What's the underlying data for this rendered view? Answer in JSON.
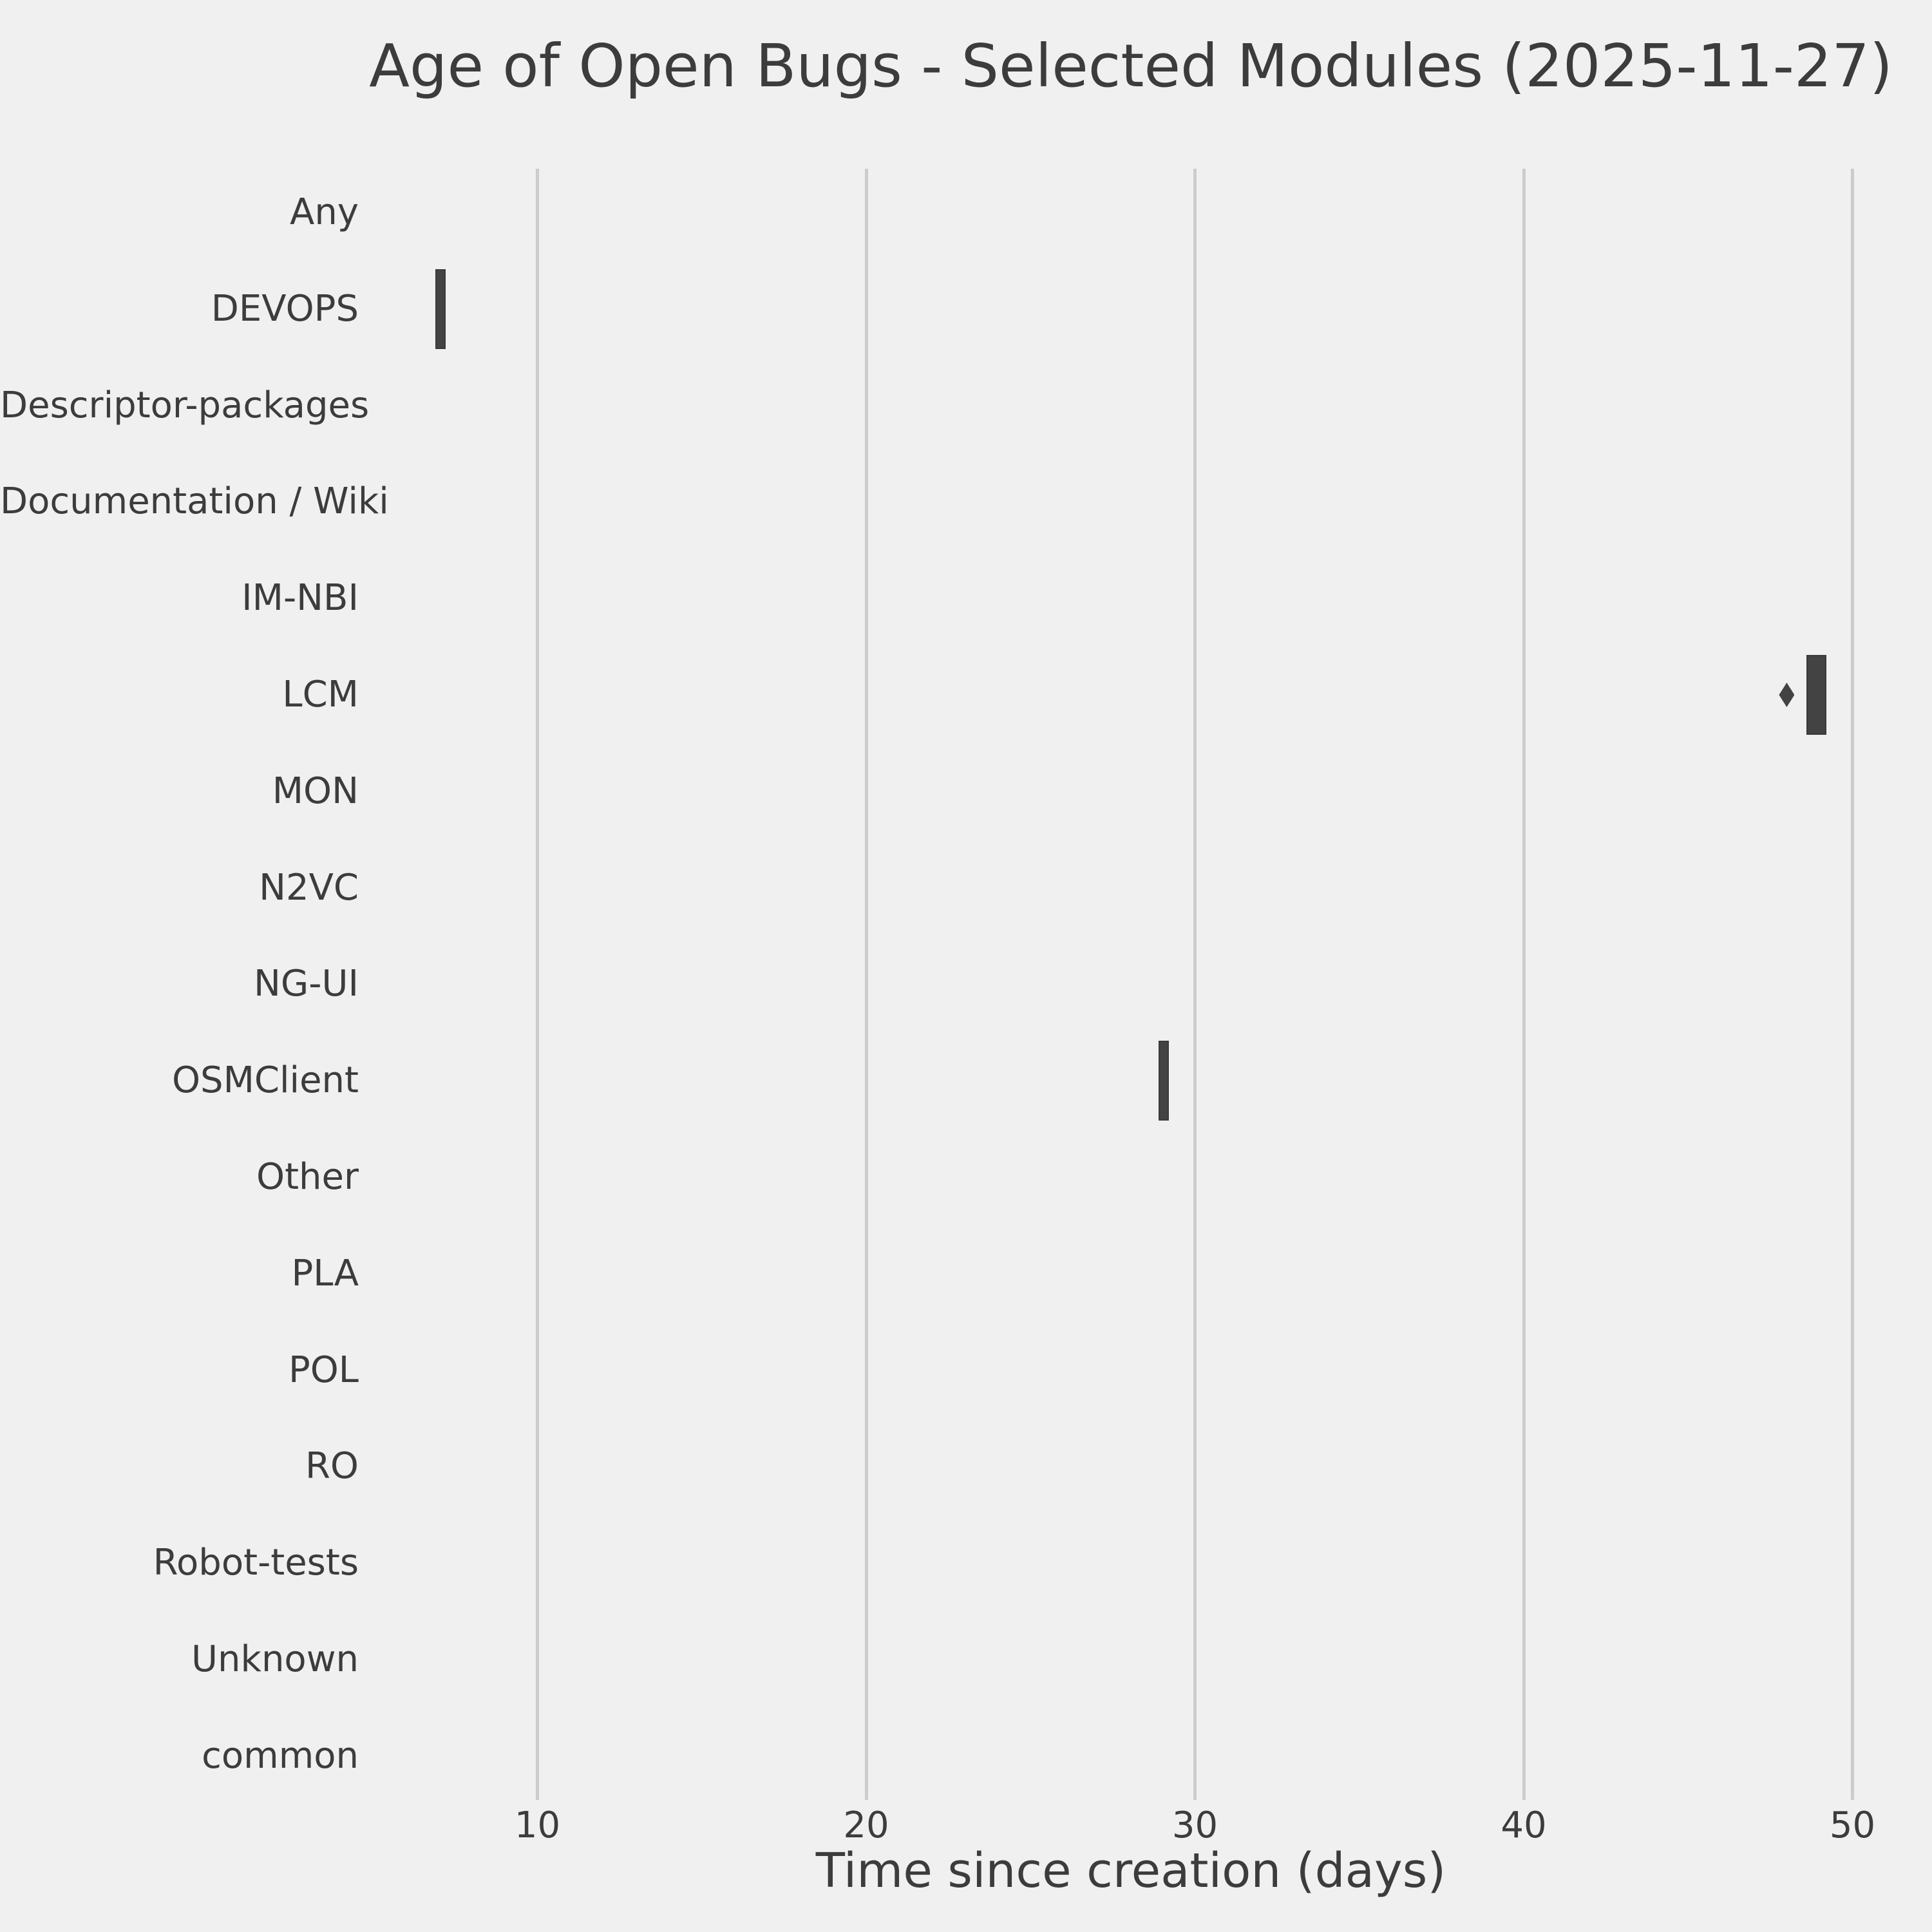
{
  "chart_data": {
    "type": "boxplot",
    "orientation": "horizontal",
    "title": "Age of Open Bugs - Selected Modules (2025-11-27)",
    "xlabel": "Time since creation (days)",
    "x_ticks": [
      10,
      20,
      30,
      40,
      50
    ],
    "xlim": [
      4.7,
      51.4
    ],
    "grid": "vertical-only",
    "legend": "none",
    "categories": [
      "Any",
      "DEVOPS",
      "Descriptor-packages",
      "Documentation / Wiki",
      "IM-NBI",
      "LCM",
      "MON",
      "N2VC",
      "NG-UI",
      "OSMClient",
      "Other",
      "PLA",
      "POL",
      "RO",
      "Robot-tests",
      "Unknown",
      "common"
    ],
    "boxes": [
      {
        "category": "DEVOPS",
        "whisker_low": 6.9,
        "q1": 6.9,
        "median": 7.0,
        "q3": 7.2,
        "whisker_high": 7.2,
        "outliers": []
      },
      {
        "category": "LCM",
        "whisker_low": 48.6,
        "q1": 48.6,
        "median": 49.0,
        "q3": 49.2,
        "whisker_high": 49.2,
        "outliers": [
          48.0
        ]
      },
      {
        "category": "OSMClient",
        "whisker_low": 28.9,
        "q1": 28.9,
        "median": 29.0,
        "q3": 29.2,
        "whisker_high": 29.2,
        "outliers": []
      }
    ],
    "colors": {
      "background": "#f0f0f0",
      "gridline": "#cccccc",
      "box": "#434343",
      "text": "#3c3c3c"
    }
  }
}
